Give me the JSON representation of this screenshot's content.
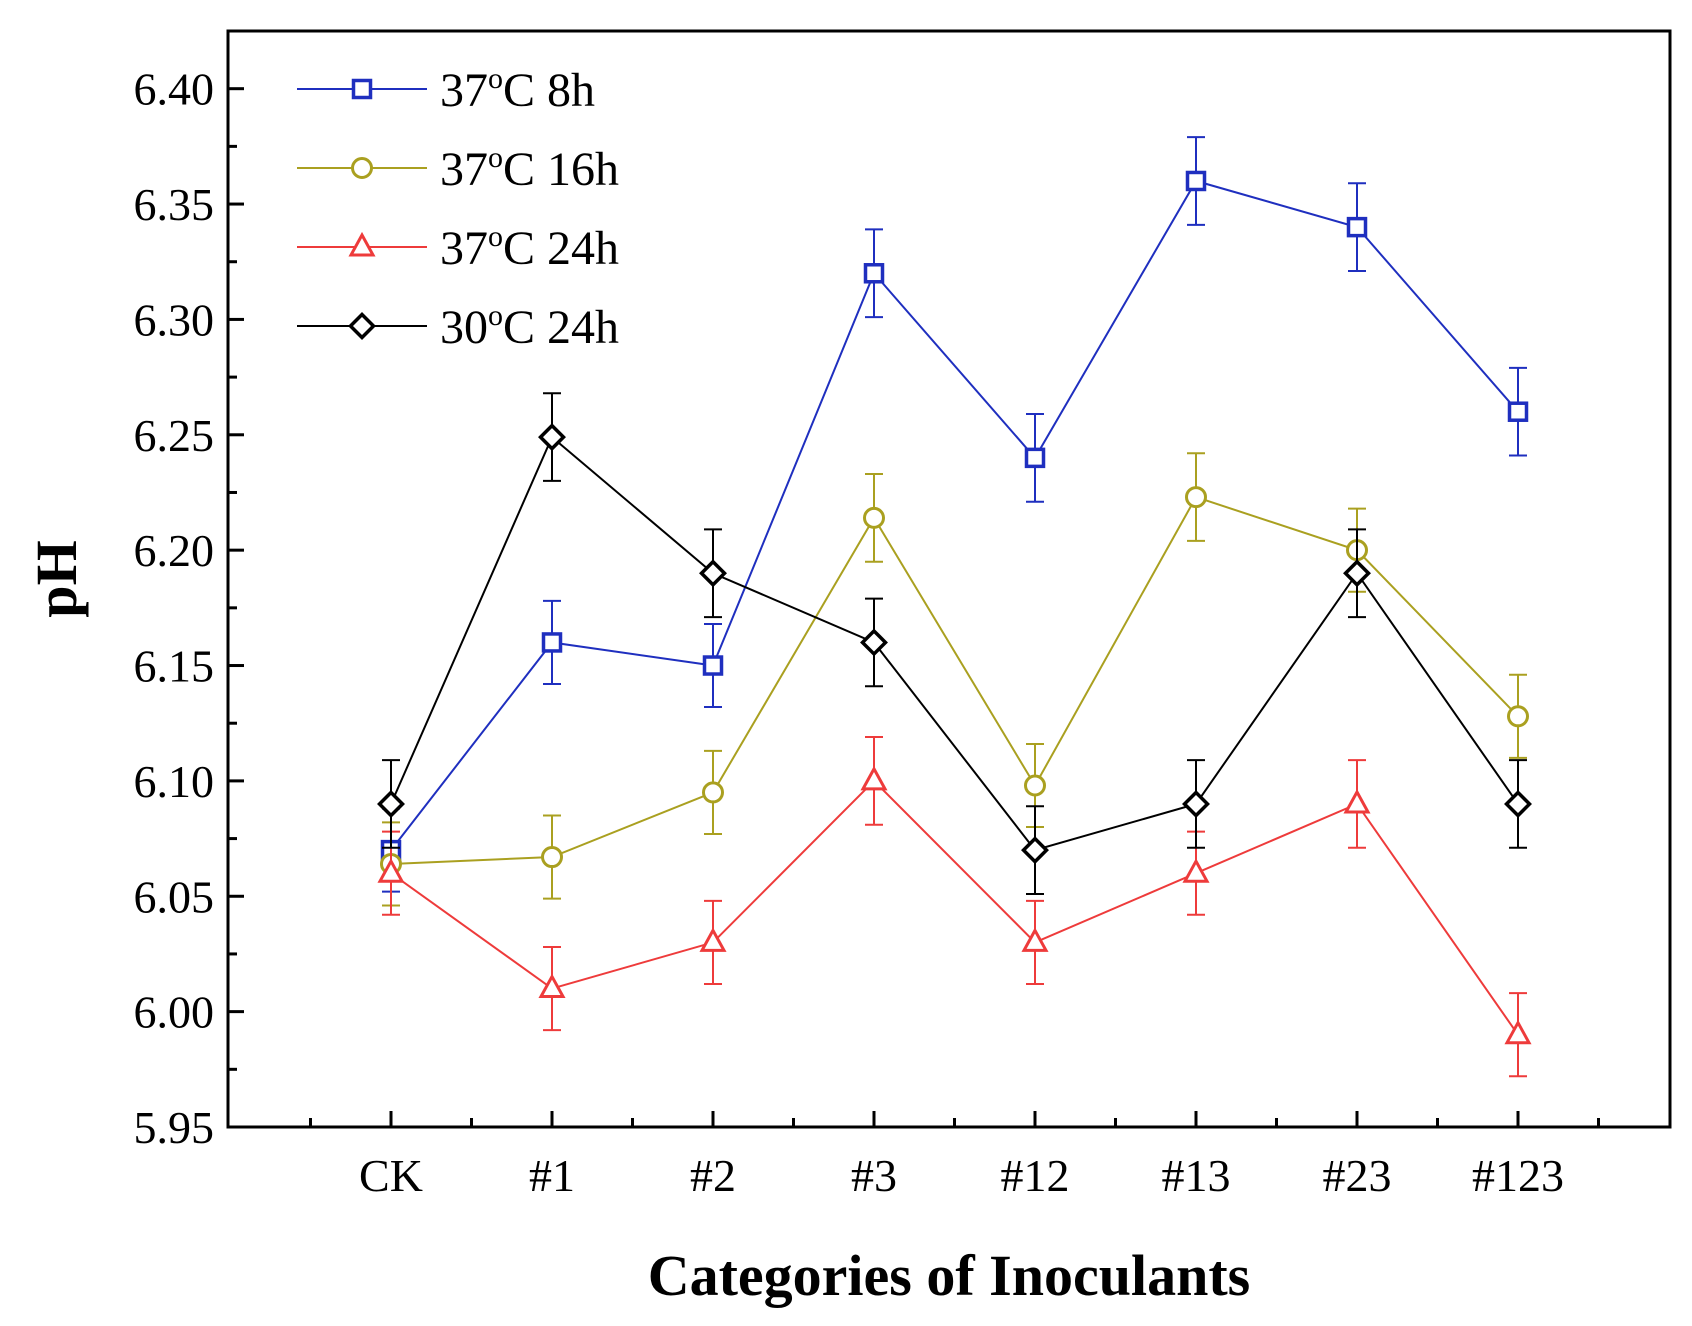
{
  "chart_data": {
    "type": "line",
    "xlabel": "Categories of Inoculants",
    "ylabel": "pH",
    "categories": [
      "CK",
      "#1",
      "#2",
      "#3",
      "#12",
      "#13",
      "#23",
      "#123"
    ],
    "ylim": [
      5.95,
      6.425
    ],
    "yticks": [
      "5.95",
      "6.00",
      "6.05",
      "6.10",
      "6.15",
      "6.20",
      "6.25",
      "6.30",
      "6.35",
      "6.40"
    ],
    "legend_position": "top-left",
    "grid": false,
    "series": [
      {
        "temp": "37",
        "deg": "o",
        "unit": "C",
        "time": "8h",
        "color": "#1f2fbf",
        "marker": "square",
        "values": [
          6.07,
          6.16,
          6.15,
          6.32,
          6.24,
          6.36,
          6.34,
          6.26
        ],
        "errors": [
          0.018,
          0.018,
          0.018,
          0.019,
          0.019,
          0.019,
          0.019,
          0.019
        ]
      },
      {
        "temp": "37",
        "deg": "o",
        "unit": "C",
        "time": "16h",
        "color": "#aaa020",
        "marker": "circle",
        "values": [
          6.064,
          6.067,
          6.095,
          6.214,
          6.098,
          6.223,
          6.2,
          6.128
        ],
        "errors": [
          0.018,
          0.018,
          0.018,
          0.019,
          0.018,
          0.019,
          0.018,
          0.018
        ]
      },
      {
        "temp": "37",
        "deg": "o",
        "unit": "C",
        "time": "24h",
        "color": "#ee3b3b",
        "marker": "triangle",
        "values": [
          6.06,
          6.01,
          6.03,
          6.1,
          6.03,
          6.06,
          6.09,
          5.99
        ],
        "errors": [
          0.018,
          0.018,
          0.018,
          0.019,
          0.018,
          0.018,
          0.019,
          0.018
        ]
      },
      {
        "temp": "30",
        "deg": "o",
        "unit": "C",
        "time": "24h",
        "color": "#000000",
        "marker": "diamond",
        "values": [
          6.09,
          6.249,
          6.19,
          6.16,
          6.07,
          6.09,
          6.19,
          6.09
        ],
        "errors": [
          0.019,
          0.019,
          0.019,
          0.019,
          0.019,
          0.019,
          0.019,
          0.019
        ]
      }
    ]
  }
}
